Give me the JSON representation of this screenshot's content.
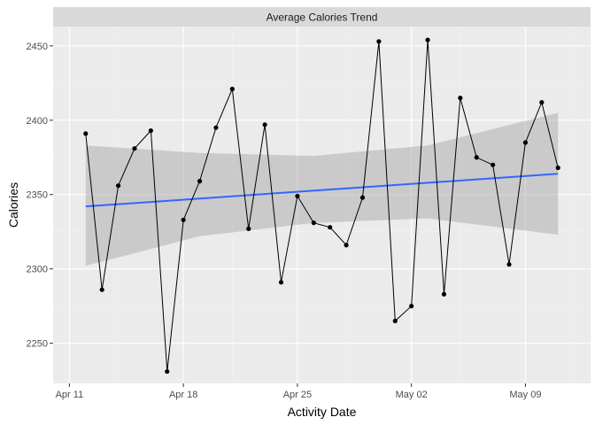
{
  "chart_data": {
    "type": "line",
    "title": "Average Calories Trend",
    "xlabel": "Activity Date",
    "ylabel": "Calories",
    "x_axis_type": "date",
    "xlim": [
      "2016-04-10",
      "2016-05-13"
    ],
    "ylim": [
      2223,
      2463
    ],
    "x_ticks": [
      {
        "date": "2016-04-11",
        "label": "Apr 11"
      },
      {
        "date": "2016-04-18",
        "label": "Apr 18"
      },
      {
        "date": "2016-04-25",
        "label": "Apr 25"
      },
      {
        "date": "2016-05-02",
        "label": "May 02"
      },
      {
        "date": "2016-05-09",
        "label": "May 09"
      }
    ],
    "y_ticks": [
      2250,
      2300,
      2350,
      2400,
      2450
    ],
    "grid": true,
    "series": [
      {
        "type": "line+points",
        "color": "#000000",
        "points": [
          {
            "x": "2016-04-12",
            "y": 2391
          },
          {
            "x": "2016-04-13",
            "y": 2286
          },
          {
            "x": "2016-04-14",
            "y": 2356
          },
          {
            "x": "2016-04-15",
            "y": 2381
          },
          {
            "x": "2016-04-16",
            "y": 2393
          },
          {
            "x": "2016-04-17",
            "y": 2231
          },
          {
            "x": "2016-04-18",
            "y": 2333
          },
          {
            "x": "2016-04-19",
            "y": 2359
          },
          {
            "x": "2016-04-20",
            "y": 2395
          },
          {
            "x": "2016-04-21",
            "y": 2421
          },
          {
            "x": "2016-04-22",
            "y": 2327
          },
          {
            "x": "2016-04-23",
            "y": 2397
          },
          {
            "x": "2016-04-24",
            "y": 2291
          },
          {
            "x": "2016-04-25",
            "y": 2349
          },
          {
            "x": "2016-04-26",
            "y": 2331
          },
          {
            "x": "2016-04-27",
            "y": 2328
          },
          {
            "x": "2016-04-28",
            "y": 2316
          },
          {
            "x": "2016-04-29",
            "y": 2348
          },
          {
            "x": "2016-04-30",
            "y": 2453
          },
          {
            "x": "2016-05-01",
            "y": 2265
          },
          {
            "x": "2016-05-02",
            "y": 2275
          },
          {
            "x": "2016-05-03",
            "y": 2454
          },
          {
            "x": "2016-05-04",
            "y": 2283
          },
          {
            "x": "2016-05-05",
            "y": 2415
          },
          {
            "x": "2016-05-06",
            "y": 2375
          },
          {
            "x": "2016-05-07",
            "y": 2370
          },
          {
            "x": "2016-05-08",
            "y": 2303
          },
          {
            "x": "2016-05-09",
            "y": 2385
          },
          {
            "x": "2016-05-10",
            "y": 2412
          },
          {
            "x": "2016-05-11",
            "y": 2368
          }
        ]
      }
    ],
    "trend": {
      "method": "linear",
      "color": "#3366FF",
      "start": {
        "x": "2016-04-12",
        "y": 2342
      },
      "end": {
        "x": "2016-05-11",
        "y": 2364
      },
      "band_color": "#999999",
      "band": [
        {
          "x": "2016-04-12",
          "lower": 2302,
          "upper": 2383
        },
        {
          "x": "2016-04-19",
          "lower": 2322,
          "upper": 2378
        },
        {
          "x": "2016-04-26",
          "lower": 2331,
          "upper": 2376
        },
        {
          "x": "2016-05-03",
          "lower": 2334,
          "upper": 2383
        },
        {
          "x": "2016-05-11",
          "lower": 2323,
          "upper": 2405
        }
      ]
    }
  }
}
